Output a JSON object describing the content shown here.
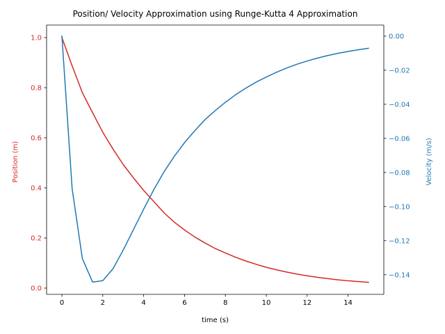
{
  "chart_data": {
    "type": "line",
    "title": "Position/ Velocity Approximation using Runge-Kutta 4 Approximation",
    "xlabel": "time (s)",
    "ylabel_left": "Position (m)",
    "ylabel_right": "Velocity (m/s)",
    "xlim": [
      -0.75,
      15.75
    ],
    "ylim_left": [
      -0.025,
      1.05
    ],
    "ylim_right": [
      -0.1515,
      0.0065
    ],
    "x_ticks": [
      0,
      2,
      4,
      6,
      8,
      10,
      12,
      14
    ],
    "y_ticks_left": [
      0.0,
      0.2,
      0.4,
      0.6,
      0.8,
      1.0
    ],
    "y_ticks_right": [
      -0.14,
      -0.12,
      -0.1,
      -0.08,
      -0.06,
      -0.04,
      -0.02,
      0.0
    ],
    "grid": false,
    "left_axis_color": "#d62728",
    "right_axis_color": "#1f77b4",
    "series": [
      {
        "name": "Position (m)",
        "axis": "left",
        "color": "#d62728",
        "x": [
          0,
          0.5,
          1,
          1.5,
          2,
          2.5,
          3,
          3.5,
          4,
          4.5,
          5,
          5.5,
          6,
          6.5,
          7,
          7.5,
          8,
          8.5,
          9,
          9.5,
          10,
          10.5,
          11,
          11.5,
          12,
          12.5,
          13,
          13.5,
          14,
          14.5,
          15
        ],
        "values": [
          1.0,
          0.887,
          0.78,
          0.7,
          0.622,
          0.555,
          0.493,
          0.44,
          0.39,
          0.345,
          0.3,
          0.263,
          0.232,
          0.204,
          0.18,
          0.158,
          0.14,
          0.123,
          0.108,
          0.095,
          0.083,
          0.073,
          0.064,
          0.056,
          0.049,
          0.043,
          0.038,
          0.033,
          0.029,
          0.026,
          0.023
        ]
      },
      {
        "name": "Velocity (m/s)",
        "axis": "right",
        "color": "#1f77b4",
        "x": [
          0,
          0.5,
          1,
          1.5,
          2,
          2.5,
          3,
          3.5,
          4,
          4.5,
          5,
          5.5,
          6,
          6.5,
          7,
          7.5,
          8,
          8.5,
          9,
          9.5,
          10,
          10.5,
          11,
          11.5,
          12,
          12.5,
          13,
          13.5,
          14,
          14.5,
          15
        ],
        "values": [
          0.0,
          -0.0895,
          -0.1305,
          -0.1443,
          -0.1435,
          -0.1365,
          -0.1255,
          -0.1135,
          -0.1015,
          -0.09,
          -0.0795,
          -0.0705,
          -0.0625,
          -0.0555,
          -0.049,
          -0.0437,
          -0.0388,
          -0.0344,
          -0.0305,
          -0.027,
          -0.024,
          -0.0212,
          -0.0187,
          -0.0165,
          -0.0146,
          -0.0129,
          -0.0114,
          -0.0101,
          -0.009,
          -0.008,
          -0.0071
        ]
      }
    ]
  }
}
